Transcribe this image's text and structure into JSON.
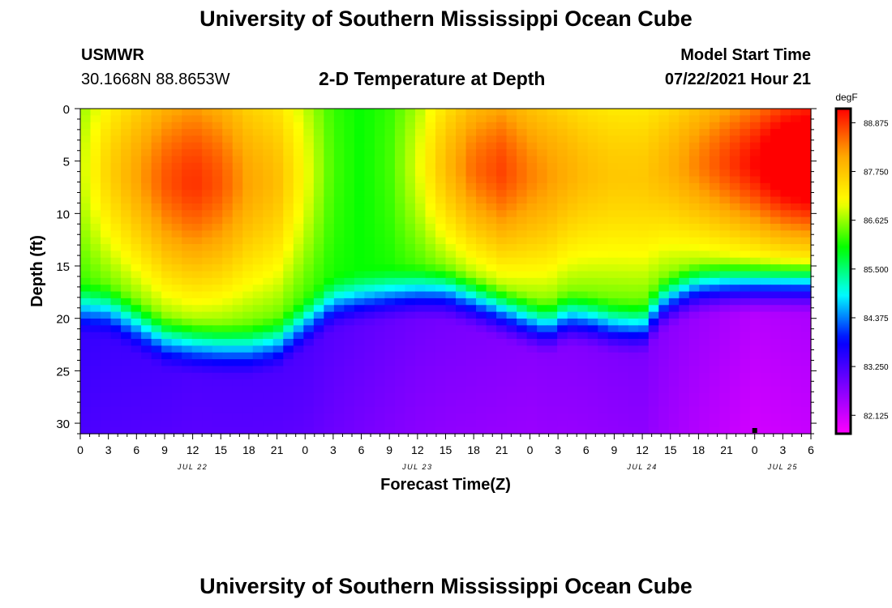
{
  "page": {
    "title_top": "University of Southern Mississippi Ocean Cube",
    "title_bottom": "University of Southern Mississippi Ocean Cube",
    "station_name": "USMWR",
    "station_coords": "30.1668N  88.8653W",
    "plot_title": "2-D Temperature at Depth",
    "model_start_label": "Model Start Time",
    "model_start_value": "07/22/2021 Hour 21"
  },
  "chart_data": {
    "type": "heatmap",
    "title": "2-D Temperature at Depth",
    "xlabel": "Forecast Time(Z)",
    "ylabel": "Depth (ft)",
    "x_range_hours": [
      0,
      78
    ],
    "y_range_ft": [
      0,
      31
    ],
    "x_tick_labels": [
      "0",
      "3",
      "6",
      "9",
      "12",
      "15",
      "18",
      "21",
      "0",
      "3",
      "6",
      "9",
      "12",
      "15",
      "18",
      "21",
      "0",
      "3",
      "6",
      "9",
      "12",
      "15",
      "18",
      "21",
      "0",
      "3",
      "6"
    ],
    "date_labels": [
      {
        "text": "JUL 22",
        "hour": 12
      },
      {
        "text": "JUL 23",
        "hour": 36
      },
      {
        "text": "JUL 24",
        "hour": 60
      },
      {
        "text": "JUL 25",
        "hour": 75
      }
    ],
    "y_ticks": [
      0,
      5,
      10,
      15,
      20,
      25,
      30
    ],
    "colorbar": {
      "unit": "degF",
      "min": 81.7,
      "max": 89.2,
      "tick_values": [
        82.125,
        83.25,
        84.375,
        85.5,
        86.625,
        87.75,
        88.875
      ],
      "tick_labels": [
        "82.125",
        "83.250",
        "84.375",
        "85.500",
        "86.625",
        "87.750",
        "88.875"
      ],
      "colors": [
        "#ff00ff",
        "#8000ff",
        "#0000ff",
        "#00ffff",
        "#00ff00",
        "#ffff00",
        "#ffa500",
        "#ff0000"
      ]
    },
    "surface_temperature_degF": [
      [
        0,
        86.6
      ],
      [
        3,
        87.2
      ],
      [
        6,
        87.6
      ],
      [
        9,
        88.0
      ],
      [
        12,
        88.2
      ],
      [
        15,
        88.0
      ],
      [
        18,
        87.6
      ],
      [
        21,
        87.4
      ],
      [
        24,
        86.8
      ],
      [
        27,
        86.2
      ],
      [
        30,
        86.0
      ],
      [
        33,
        86.2
      ],
      [
        36,
        86.7
      ],
      [
        39,
        87.4
      ],
      [
        42,
        87.9
      ],
      [
        45,
        88.1
      ],
      [
        48,
        87.8
      ],
      [
        51,
        87.6
      ],
      [
        54,
        87.4
      ],
      [
        57,
        87.3
      ],
      [
        60,
        87.3
      ],
      [
        63,
        87.5
      ],
      [
        66,
        87.8
      ],
      [
        69,
        88.1
      ],
      [
        72,
        88.4
      ],
      [
        75,
        88.8
      ],
      [
        78,
        89.0
      ]
    ],
    "thermocline_depth_ft": [
      [
        0,
        19.0
      ],
      [
        3,
        19.3
      ],
      [
        6,
        20.8
      ],
      [
        9,
        22.3
      ],
      [
        12,
        22.8
      ],
      [
        15,
        23.0
      ],
      [
        18,
        23.0
      ],
      [
        21,
        22.5
      ],
      [
        24,
        20.5
      ],
      [
        27,
        18.5
      ],
      [
        30,
        18.0
      ],
      [
        33,
        17.7
      ],
      [
        36,
        17.5
      ],
      [
        39,
        17.6
      ],
      [
        42,
        18.5
      ],
      [
        45,
        19.5
      ],
      [
        48,
        20.5
      ],
      [
        50,
        21.0
      ],
      [
        52,
        20.0
      ],
      [
        54,
        20.2
      ],
      [
        57,
        20.8
      ],
      [
        60,
        21.0
      ],
      [
        62,
        18.8
      ],
      [
        64,
        17.8
      ],
      [
        66,
        17.2
      ],
      [
        69,
        17.0
      ],
      [
        72,
        17.0
      ],
      [
        75,
        17.0
      ],
      [
        78,
        17.0
      ]
    ],
    "bottom_temperature_degF": [
      [
        0,
        83.1
      ],
      [
        12,
        82.9
      ],
      [
        24,
        82.9
      ],
      [
        36,
        82.6
      ],
      [
        48,
        82.4
      ],
      [
        60,
        82.5
      ],
      [
        72,
        82.0
      ],
      [
        78,
        82.1
      ]
    ]
  }
}
